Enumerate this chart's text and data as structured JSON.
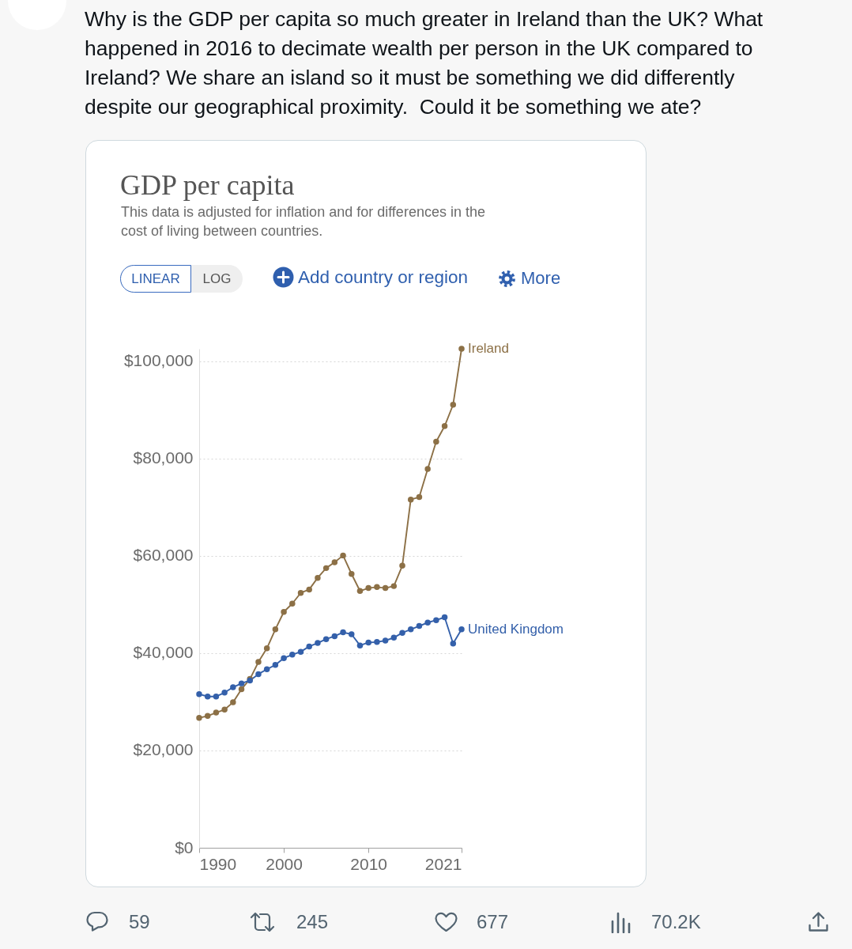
{
  "chart_data": {
    "type": "line",
    "title": "GDP per capita",
    "subtitle": "This data is adjusted for inflation and for differences in the cost of living between countries.",
    "annotations": [
      "Why is the GDP per capita so much greater in Ireland than the UK? What happened in 2016 to decimate wealth per person in the UK compared to Ireland? We share an island so it must be something we did differently despite our geographical proximity.  Could it be something we ate?",
      "LINEAR",
      "LOG",
      "Add country or region",
      "More",
      "59",
      "245",
      "677",
      "70.2K"
    ],
    "x": [
      1990,
      1991,
      1992,
      1993,
      1994,
      1995,
      1996,
      1997,
      1998,
      1999,
      2000,
      2001,
      2002,
      2003,
      2004,
      2005,
      2006,
      2007,
      2008,
      2009,
      2010,
      2011,
      2012,
      2013,
      2014,
      2015,
      2016,
      2017,
      2018,
      2019,
      2020,
      2021
    ],
    "series": [
      {
        "name": "Ireland",
        "color": "#8c7046",
        "values": [
          26700,
          27100,
          27800,
          28400,
          29900,
          32600,
          34700,
          38200,
          41000,
          44900,
          48500,
          50200,
          52400,
          53100,
          55500,
          57500,
          58700,
          60100,
          56300,
          52800,
          53400,
          53600,
          53400,
          53800,
          58000,
          71600,
          72100,
          77900,
          83500,
          86700,
          91100,
          102600
        ]
      },
      {
        "name": "United Kingdom",
        "color": "#3460aa",
        "values": [
          31600,
          31100,
          31100,
          31900,
          33000,
          33800,
          34400,
          35700,
          36700,
          37600,
          39000,
          39700,
          40300,
          41400,
          42100,
          42900,
          43500,
          44300,
          43900,
          41600,
          42200,
          42300,
          42600,
          43200,
          44200,
          44900,
          45600,
          46300,
          46800,
          47400,
          42000,
          44900
        ]
      }
    ],
    "xlim": [
      1990,
      2021
    ],
    "xticks": [
      1990,
      2000,
      2010,
      2021
    ],
    "ylim": [
      0,
      102600
    ],
    "yticks": [
      {
        "value": 0,
        "label": "$0"
      },
      {
        "value": 20000,
        "label": "$20,000"
      },
      {
        "value": 40000,
        "label": "$40,000"
      },
      {
        "value": 60000,
        "label": "$60,000"
      },
      {
        "value": 80000,
        "label": "$80,000"
      },
      {
        "value": 100000,
        "label": "$100,000"
      }
    ],
    "grid": "y",
    "marker": "circle",
    "line_style": "solid"
  }
}
